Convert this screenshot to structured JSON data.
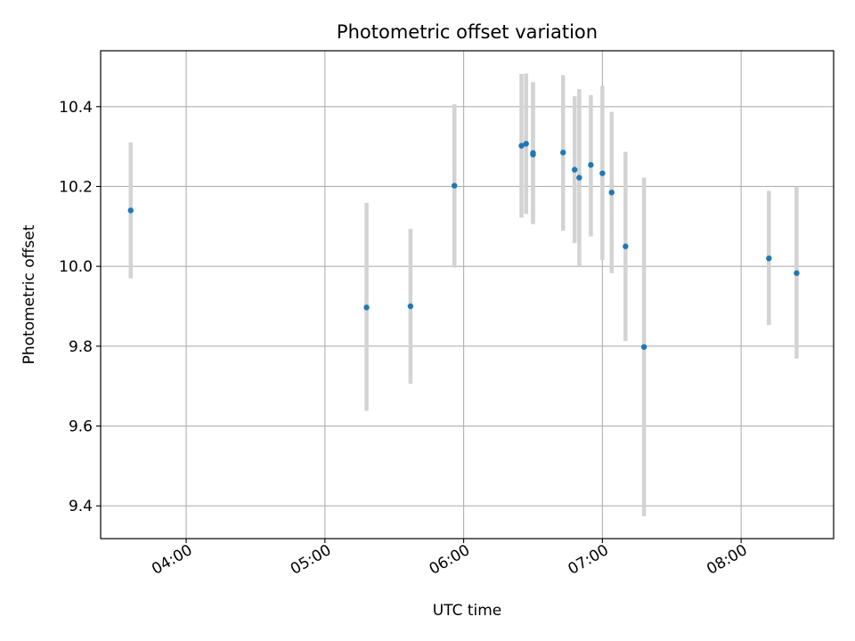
{
  "chart_data": {
    "type": "scatter",
    "title": "Photometric offset variation",
    "xlabel": "UTC time",
    "ylabel": "Photometric offset",
    "x_unit": "UTC time of day (HH:MM)",
    "xlim": [
      "03:23",
      "08:40"
    ],
    "ylim": [
      9.318,
      10.54
    ],
    "x_ticks": [
      "04:00",
      "05:00",
      "06:00",
      "07:00",
      "08:00"
    ],
    "y_ticks": [
      9.4,
      9.6,
      9.8,
      10.0,
      10.2,
      10.4
    ],
    "y_tick_labels": [
      "9.4",
      "9.6",
      "9.8",
      "10.0",
      "10.2",
      "10.4"
    ],
    "grid": true,
    "point_color": "#1f77b4",
    "errorbar_color": "#d3d3d3",
    "points": [
      {
        "x": "03:36",
        "y": 10.14,
        "ylo": 9.97,
        "yhi": 10.31
      },
      {
        "x": "05:18",
        "y": 9.897,
        "ylo": 9.638,
        "yhi": 10.159
      },
      {
        "x": "05:37",
        "y": 9.9,
        "ylo": 9.706,
        "yhi": 10.094
      },
      {
        "x": "05:56",
        "y": 10.202,
        "ylo": 9.997,
        "yhi": 10.406
      },
      {
        "x": "06:25",
        "y": 10.302,
        "ylo": 10.122,
        "yhi": 10.482
      },
      {
        "x": "06:27",
        "y": 10.307,
        "ylo": 10.131,
        "yhi": 10.483
      },
      {
        "x": "06:30",
        "y": 10.284,
        "ylo": 10.106,
        "yhi": 10.461
      },
      {
        "x": "06:30",
        "y": 10.28,
        "ylo": 10.106,
        "yhi": 10.461
      },
      {
        "x": "06:43",
        "y": 10.285,
        "ylo": 10.089,
        "yhi": 10.479
      },
      {
        "x": "06:48",
        "y": 10.242,
        "ylo": 10.058,
        "yhi": 10.426
      },
      {
        "x": "06:50",
        "y": 10.222,
        "ylo": 10.0,
        "yhi": 10.444
      },
      {
        "x": "06:55",
        "y": 10.254,
        "ylo": 10.075,
        "yhi": 10.429
      },
      {
        "x": "07:00",
        "y": 10.233,
        "ylo": 10.016,
        "yhi": 10.452
      },
      {
        "x": "07:04",
        "y": 10.185,
        "ylo": 9.983,
        "yhi": 10.387
      },
      {
        "x": "07:10",
        "y": 10.05,
        "ylo": 9.813,
        "yhi": 10.287
      },
      {
        "x": "07:18",
        "y": 9.798,
        "ylo": 9.374,
        "yhi": 10.222
      },
      {
        "x": "08:12",
        "y": 10.02,
        "ylo": 9.853,
        "yhi": 10.189
      },
      {
        "x": "08:24",
        "y": 9.983,
        "ylo": 9.769,
        "yhi": 10.2
      }
    ]
  }
}
